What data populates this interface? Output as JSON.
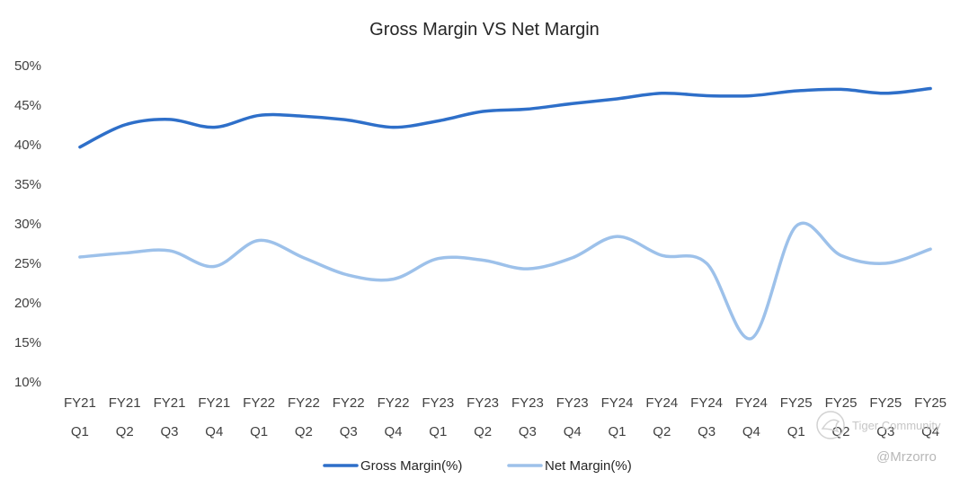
{
  "chart_data": {
    "type": "line",
    "title": "Gross Margin VS Net Margin",
    "xlabel": "",
    "ylabel": "",
    "categories": [
      [
        "FY21",
        "Q1"
      ],
      [
        "FY21",
        "Q2"
      ],
      [
        "FY21",
        "Q3"
      ],
      [
        "FY21",
        "Q4"
      ],
      [
        "FY22",
        "Q1"
      ],
      [
        "FY22",
        "Q2"
      ],
      [
        "FY22",
        "Q3"
      ],
      [
        "FY22",
        "Q4"
      ],
      [
        "FY23",
        "Q1"
      ],
      [
        "FY23",
        "Q2"
      ],
      [
        "FY23",
        "Q3"
      ],
      [
        "FY23",
        "Q4"
      ],
      [
        "FY24",
        "Q1"
      ],
      [
        "FY24",
        "Q2"
      ],
      [
        "FY24",
        "Q3"
      ],
      [
        "FY24",
        "Q4"
      ],
      [
        "FY25",
        "Q1"
      ],
      [
        "FY25",
        "Q2"
      ],
      [
        "FY25",
        "Q3"
      ],
      [
        "FY25",
        "Q4"
      ]
    ],
    "ylim": [
      10,
      50
    ],
    "yticks": [
      10,
      15,
      20,
      25,
      30,
      35,
      40,
      45,
      50
    ],
    "ytick_labels": [
      "10%",
      "15%",
      "20%",
      "25%",
      "30%",
      "35%",
      "40%",
      "45%",
      "50%"
    ],
    "grid": false,
    "smooth": true,
    "legend_position": "bottom",
    "series": [
      {
        "name": "Gross Margin(%)",
        "color": "#2e6fc9",
        "values": [
          39.7,
          42.5,
          43.2,
          42.2,
          43.7,
          43.6,
          43.1,
          42.2,
          43.0,
          44.2,
          44.5,
          45.2,
          45.8,
          46.5,
          46.2,
          46.2,
          46.8,
          47.0,
          46.5,
          47.1
        ]
      },
      {
        "name": "Net Margin(%)",
        "color": "#9dc1ea",
        "values": [
          25.8,
          26.3,
          26.6,
          24.6,
          27.9,
          25.7,
          23.5,
          23.0,
          25.6,
          25.4,
          24.3,
          25.7,
          28.4,
          26.0,
          25.0,
          15.5,
          29.7,
          26.0,
          25.0,
          26.8
        ]
      }
    ]
  },
  "watermark": {
    "community": "Tiger Community",
    "handle": "@Mrzorro"
  }
}
